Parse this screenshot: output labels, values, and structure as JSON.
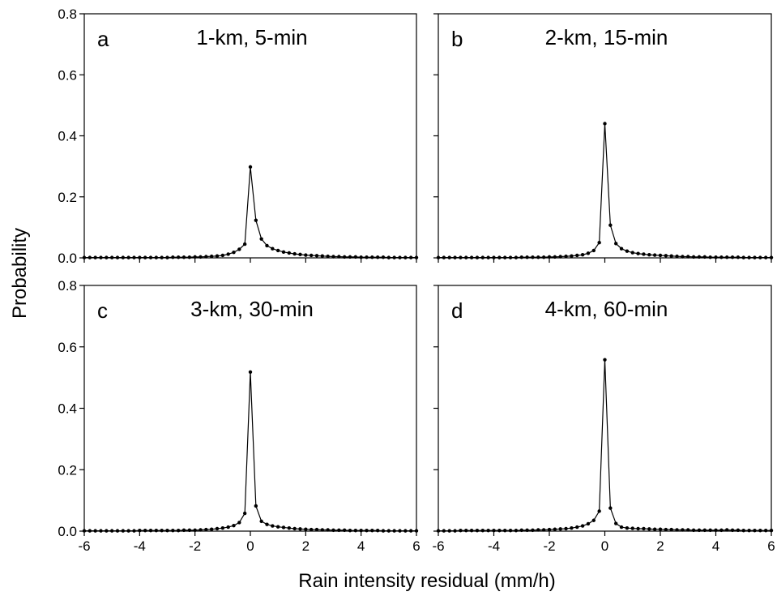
{
  "chart_data": {
    "type": "line",
    "ylabel": "Probability",
    "xlabel": "Rain intensity residual (mm/h)",
    "xlim": [
      -6,
      6
    ],
    "ylim": [
      0,
      0.8
    ],
    "x_ticks": [
      "-6",
      "-4",
      "-2",
      "0",
      "2",
      "4",
      "6"
    ],
    "y_ticks": [
      "0.0",
      "0.2",
      "0.4",
      "0.6",
      "0.8"
    ],
    "grid": false,
    "panels": [
      {
        "letter": "a",
        "label": "1-km, 5-min",
        "x": [
          -6.0,
          -5.8,
          -5.6,
          -5.4,
          -5.2,
          -5.0,
          -4.8,
          -4.6,
          -4.4,
          -4.2,
          -4.0,
          -3.8,
          -3.6,
          -3.4,
          -3.2,
          -3.0,
          -2.8,
          -2.6,
          -2.4,
          -2.2,
          -2.0,
          -1.8,
          -1.6,
          -1.4,
          -1.2,
          -1.0,
          -0.8,
          -0.6,
          -0.4,
          -0.2,
          0.0,
          0.2,
          0.4,
          0.6,
          0.8,
          1.0,
          1.2,
          1.4,
          1.6,
          1.8,
          2.0,
          2.2,
          2.4,
          2.6,
          2.8,
          3.0,
          3.2,
          3.4,
          3.6,
          3.8,
          4.0,
          4.2,
          4.4,
          4.6,
          4.8,
          5.0,
          5.2,
          5.4,
          5.6,
          5.8,
          6.0
        ],
        "y": [
          0.001,
          0.001,
          0.001,
          0.001,
          0.001,
          0.001,
          0.001,
          0.001,
          0.001,
          0.001,
          0.001,
          0.001,
          0.001,
          0.001,
          0.001,
          0.001,
          0.002,
          0.002,
          0.002,
          0.002,
          0.003,
          0.003,
          0.004,
          0.005,
          0.006,
          0.008,
          0.012,
          0.018,
          0.028,
          0.045,
          0.298,
          0.123,
          0.062,
          0.04,
          0.03,
          0.024,
          0.019,
          0.016,
          0.013,
          0.011,
          0.009,
          0.008,
          0.007,
          0.006,
          0.005,
          0.004,
          0.004,
          0.003,
          0.003,
          0.003,
          0.002,
          0.002,
          0.002,
          0.002,
          0.002,
          0.001,
          0.001,
          0.001,
          0.001,
          0.001,
          0.001
        ]
      },
      {
        "letter": "b",
        "label": "2-km, 15-min",
        "x": [
          -6.0,
          -5.8,
          -5.6,
          -5.4,
          -5.2,
          -5.0,
          -4.8,
          -4.6,
          -4.4,
          -4.2,
          -4.0,
          -3.8,
          -3.6,
          -3.4,
          -3.2,
          -3.0,
          -2.8,
          -2.6,
          -2.4,
          -2.2,
          -2.0,
          -1.8,
          -1.6,
          -1.4,
          -1.2,
          -1.0,
          -0.8,
          -0.6,
          -0.4,
          -0.2,
          0.0,
          0.2,
          0.4,
          0.6,
          0.8,
          1.0,
          1.2,
          1.4,
          1.6,
          1.8,
          2.0,
          2.2,
          2.4,
          2.6,
          2.8,
          3.0,
          3.2,
          3.4,
          3.6,
          3.8,
          4.0,
          4.2,
          4.4,
          4.6,
          4.8,
          5.0,
          5.2,
          5.4,
          5.6,
          5.8,
          6.0
        ],
        "y": [
          0.001,
          0.001,
          0.001,
          0.001,
          0.001,
          0.001,
          0.001,
          0.001,
          0.001,
          0.001,
          0.001,
          0.001,
          0.001,
          0.001,
          0.001,
          0.002,
          0.002,
          0.002,
          0.002,
          0.002,
          0.003,
          0.003,
          0.004,
          0.005,
          0.006,
          0.008,
          0.01,
          0.015,
          0.024,
          0.05,
          0.44,
          0.107,
          0.047,
          0.03,
          0.022,
          0.017,
          0.014,
          0.012,
          0.01,
          0.009,
          0.008,
          0.007,
          0.006,
          0.005,
          0.004,
          0.004,
          0.003,
          0.003,
          0.003,
          0.002,
          0.002,
          0.002,
          0.002,
          0.002,
          0.002,
          0.001,
          0.001,
          0.001,
          0.001,
          0.001,
          0.001
        ]
      },
      {
        "letter": "c",
        "label": "3-km, 30-min",
        "x": [
          -6.0,
          -5.8,
          -5.6,
          -5.4,
          -5.2,
          -5.0,
          -4.8,
          -4.6,
          -4.4,
          -4.2,
          -4.0,
          -3.8,
          -3.6,
          -3.4,
          -3.2,
          -3.0,
          -2.8,
          -2.6,
          -2.4,
          -2.2,
          -2.0,
          -1.8,
          -1.6,
          -1.4,
          -1.2,
          -1.0,
          -0.8,
          -0.6,
          -0.4,
          -0.2,
          0.0,
          0.2,
          0.4,
          0.6,
          0.8,
          1.0,
          1.2,
          1.4,
          1.6,
          1.8,
          2.0,
          2.2,
          2.4,
          2.6,
          2.8,
          3.0,
          3.2,
          3.4,
          3.6,
          3.8,
          4.0,
          4.2,
          4.4,
          4.6,
          4.8,
          5.0,
          5.2,
          5.4,
          5.6,
          5.8,
          6.0
        ],
        "y": [
          0.001,
          0.001,
          0.001,
          0.001,
          0.001,
          0.001,
          0.001,
          0.001,
          0.001,
          0.001,
          0.002,
          0.002,
          0.002,
          0.002,
          0.002,
          0.002,
          0.002,
          0.002,
          0.003,
          0.003,
          0.003,
          0.004,
          0.005,
          0.006,
          0.008,
          0.01,
          0.013,
          0.018,
          0.028,
          0.058,
          0.518,
          0.082,
          0.032,
          0.022,
          0.017,
          0.014,
          0.012,
          0.01,
          0.008,
          0.007,
          0.006,
          0.005,
          0.005,
          0.004,
          0.004,
          0.003,
          0.003,
          0.003,
          0.002,
          0.002,
          0.002,
          0.002,
          0.002,
          0.002,
          0.001,
          0.001,
          0.001,
          0.001,
          0.001,
          0.001,
          0.001
        ]
      },
      {
        "letter": "d",
        "label": "4-km, 60-min",
        "x": [
          -6.0,
          -5.8,
          -5.6,
          -5.4,
          -5.2,
          -5.0,
          -4.8,
          -4.6,
          -4.4,
          -4.2,
          -4.0,
          -3.8,
          -3.6,
          -3.4,
          -3.2,
          -3.0,
          -2.8,
          -2.6,
          -2.4,
          -2.2,
          -2.0,
          -1.8,
          -1.6,
          -1.4,
          -1.2,
          -1.0,
          -0.8,
          -0.6,
          -0.4,
          -0.2,
          0.0,
          0.2,
          0.4,
          0.6,
          0.8,
          1.0,
          1.2,
          1.4,
          1.6,
          1.8,
          2.0,
          2.2,
          2.4,
          2.6,
          2.8,
          3.0,
          3.2,
          3.4,
          3.6,
          3.8,
          4.0,
          4.2,
          4.4,
          4.6,
          4.8,
          5.0,
          5.2,
          5.4,
          5.6,
          5.8,
          6.0
        ],
        "y": [
          0.001,
          0.001,
          0.001,
          0.001,
          0.002,
          0.002,
          0.002,
          0.002,
          0.002,
          0.002,
          0.002,
          0.002,
          0.002,
          0.002,
          0.002,
          0.003,
          0.003,
          0.003,
          0.004,
          0.004,
          0.005,
          0.006,
          0.007,
          0.008,
          0.01,
          0.013,
          0.017,
          0.024,
          0.035,
          0.065,
          0.558,
          0.075,
          0.025,
          0.013,
          0.01,
          0.009,
          0.008,
          0.008,
          0.007,
          0.006,
          0.006,
          0.005,
          0.005,
          0.004,
          0.004,
          0.004,
          0.003,
          0.003,
          0.003,
          0.003,
          0.003,
          0.003,
          0.004,
          0.003,
          0.003,
          0.002,
          0.002,
          0.002,
          0.002,
          0.002,
          0.002
        ]
      }
    ]
  }
}
